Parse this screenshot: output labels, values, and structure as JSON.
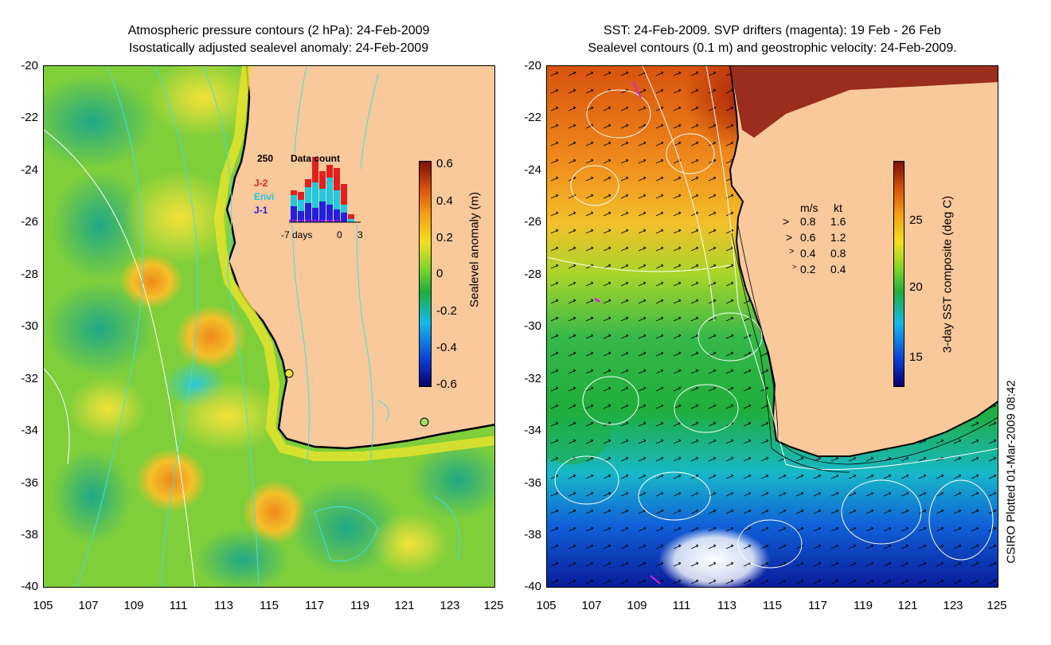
{
  "left_panel": {
    "title_line1": "Atmospheric pressure contours (2 hPa): 24-Feb-2009",
    "title_line2": "Isostatically adjusted sealevel anomaly: 24-Feb-2009",
    "colorbar_label": "Sealevel anomaly (m)",
    "colorbar_ticks": [
      "0.6",
      "0.4",
      "0.2",
      "0",
      "-0.2",
      "-0.4",
      "-0.6"
    ],
    "histogram": {
      "max_label": "250",
      "title": "Data count",
      "legend": [
        "J-2",
        "Envi",
        "J-1"
      ],
      "x_labels": [
        "-7 days",
        "0",
        "3"
      ]
    }
  },
  "right_panel": {
    "title_line1": "SST: 24-Feb-2009. SVP drifters (magenta): 19 Feb - 26 Feb",
    "title_line2": "Sealevel contours (0.1 m) and geostrophic velocity: 24-Feb-2009.",
    "colorbar_label": "3-day SST composite (deg C)",
    "colorbar_ticks": [
      "25",
      "20",
      "15"
    ],
    "velocity_legend": {
      "header_ms": "m/s",
      "header_kt": "kt",
      "rows": [
        {
          "ms": "0.8",
          "kt": "1.6"
        },
        {
          "ms": "0.6",
          "kt": "1.2"
        },
        {
          "ms": "0.4",
          "kt": "0.8"
        },
        {
          "ms": "0.2",
          "kt": "0.4"
        }
      ]
    }
  },
  "axes": {
    "lat_labels": [
      "-20",
      "-22",
      "-24",
      "-26",
      "-28",
      "-30",
      "-32",
      "-34",
      "-36",
      "-38",
      "-40"
    ],
    "lon_labels": [
      "105",
      "107",
      "109",
      "111",
      "113",
      "115",
      "117",
      "119",
      "121",
      "123",
      "125"
    ]
  },
  "credit": "CSIRO Plotted 01-Mar-2009 08:42",
  "colors": {
    "land": "#f9c89b",
    "coast": "#000000",
    "contour_cyan": "#40e0e0",
    "contour_white": "#ffffff"
  }
}
